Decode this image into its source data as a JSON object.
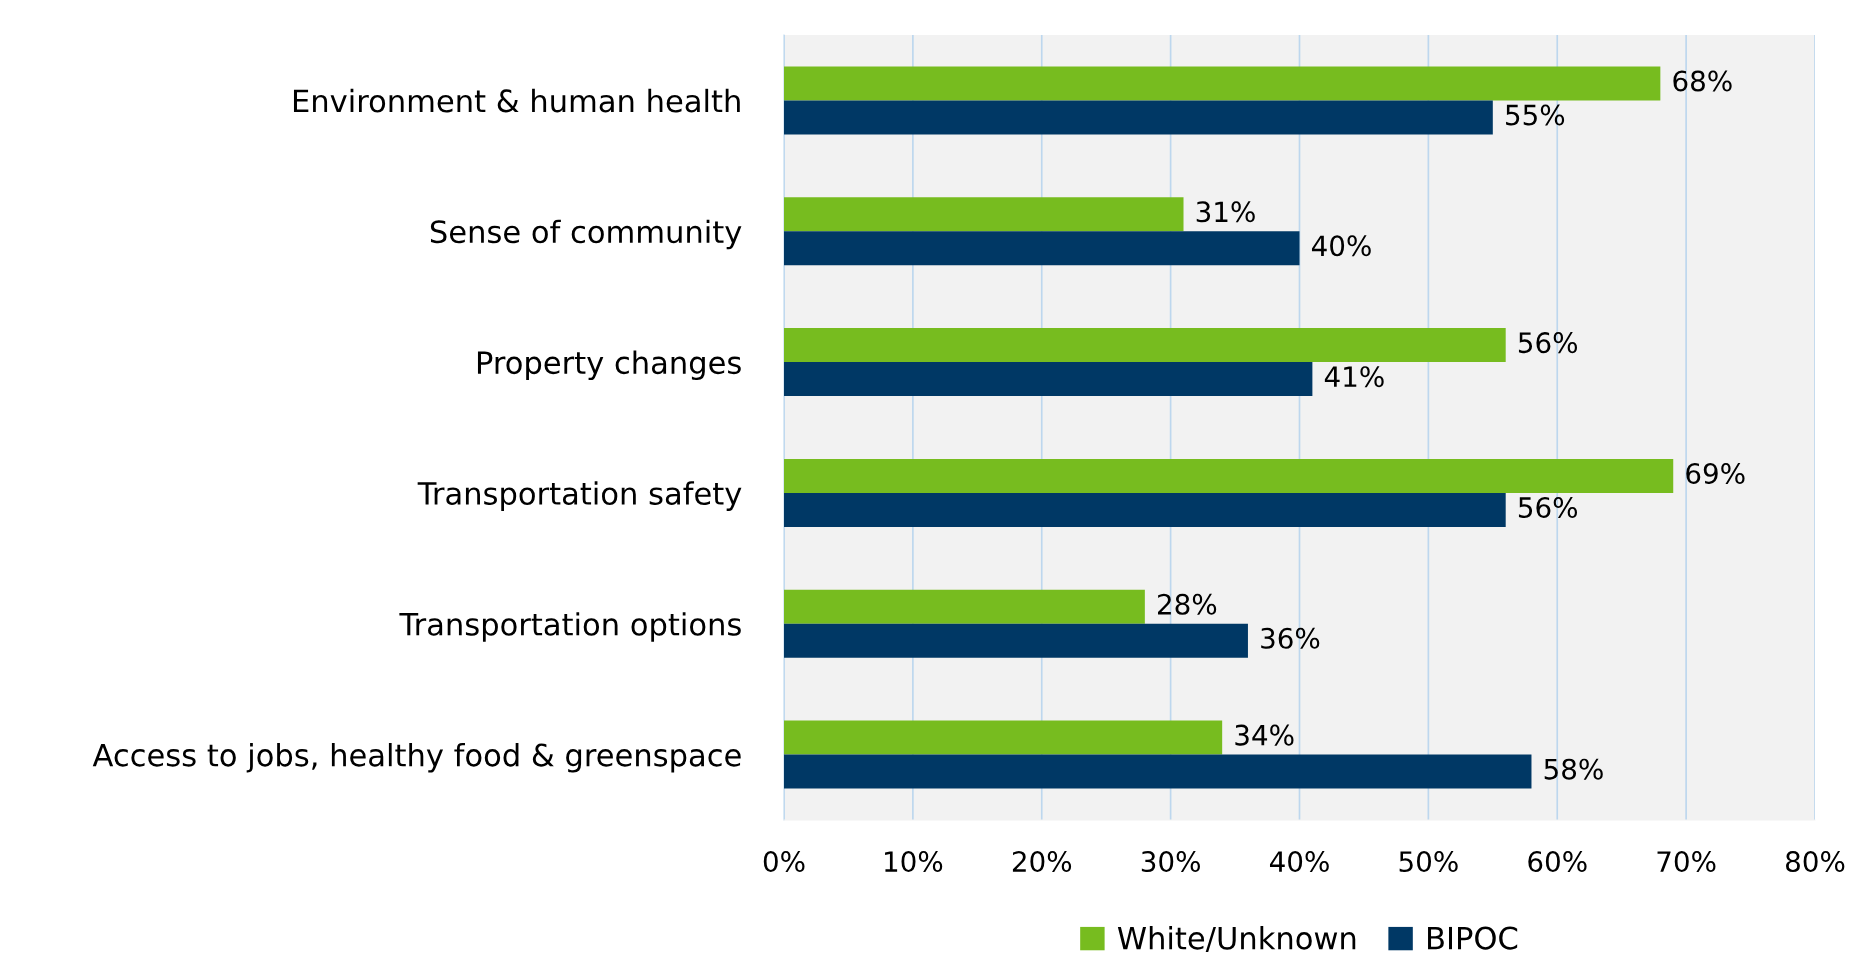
{
  "chart_data": {
    "type": "bar",
    "orientation": "horizontal",
    "categories": [
      "Environment & human health",
      "Sense of community",
      "Property changes",
      "Transportation safety",
      "Transportation options",
      "Access to jobs, healthy food & greenspace"
    ],
    "series": [
      {
        "name": "White/Unknown",
        "color": "#77bc1f",
        "values": [
          68,
          31,
          56,
          69,
          28,
          34
        ],
        "value_labels": [
          "68%",
          "31%",
          "56%",
          "69%",
          "28%",
          "34%"
        ]
      },
      {
        "name": "BIPOC",
        "color": "#003865",
        "values": [
          55,
          40,
          41,
          56,
          36,
          58
        ],
        "value_labels": [
          "55%",
          "40%",
          "41%",
          "56%",
          "36%",
          "58%"
        ]
      }
    ],
    "xlim": [
      0,
      80
    ],
    "xticks": [
      {
        "value": 0,
        "label": "0%"
      },
      {
        "value": 10,
        "label": "10%"
      },
      {
        "value": 20,
        "label": "20%"
      },
      {
        "value": 30,
        "label": "30%"
      },
      {
        "value": 40,
        "label": "40%"
      },
      {
        "value": 50,
        "label": "50%"
      },
      {
        "value": 60,
        "label": "60%"
      },
      {
        "value": 70,
        "label": "70%"
      },
      {
        "value": 80,
        "label": "80%"
      }
    ],
    "grid": "x",
    "legend": "bottom"
  }
}
